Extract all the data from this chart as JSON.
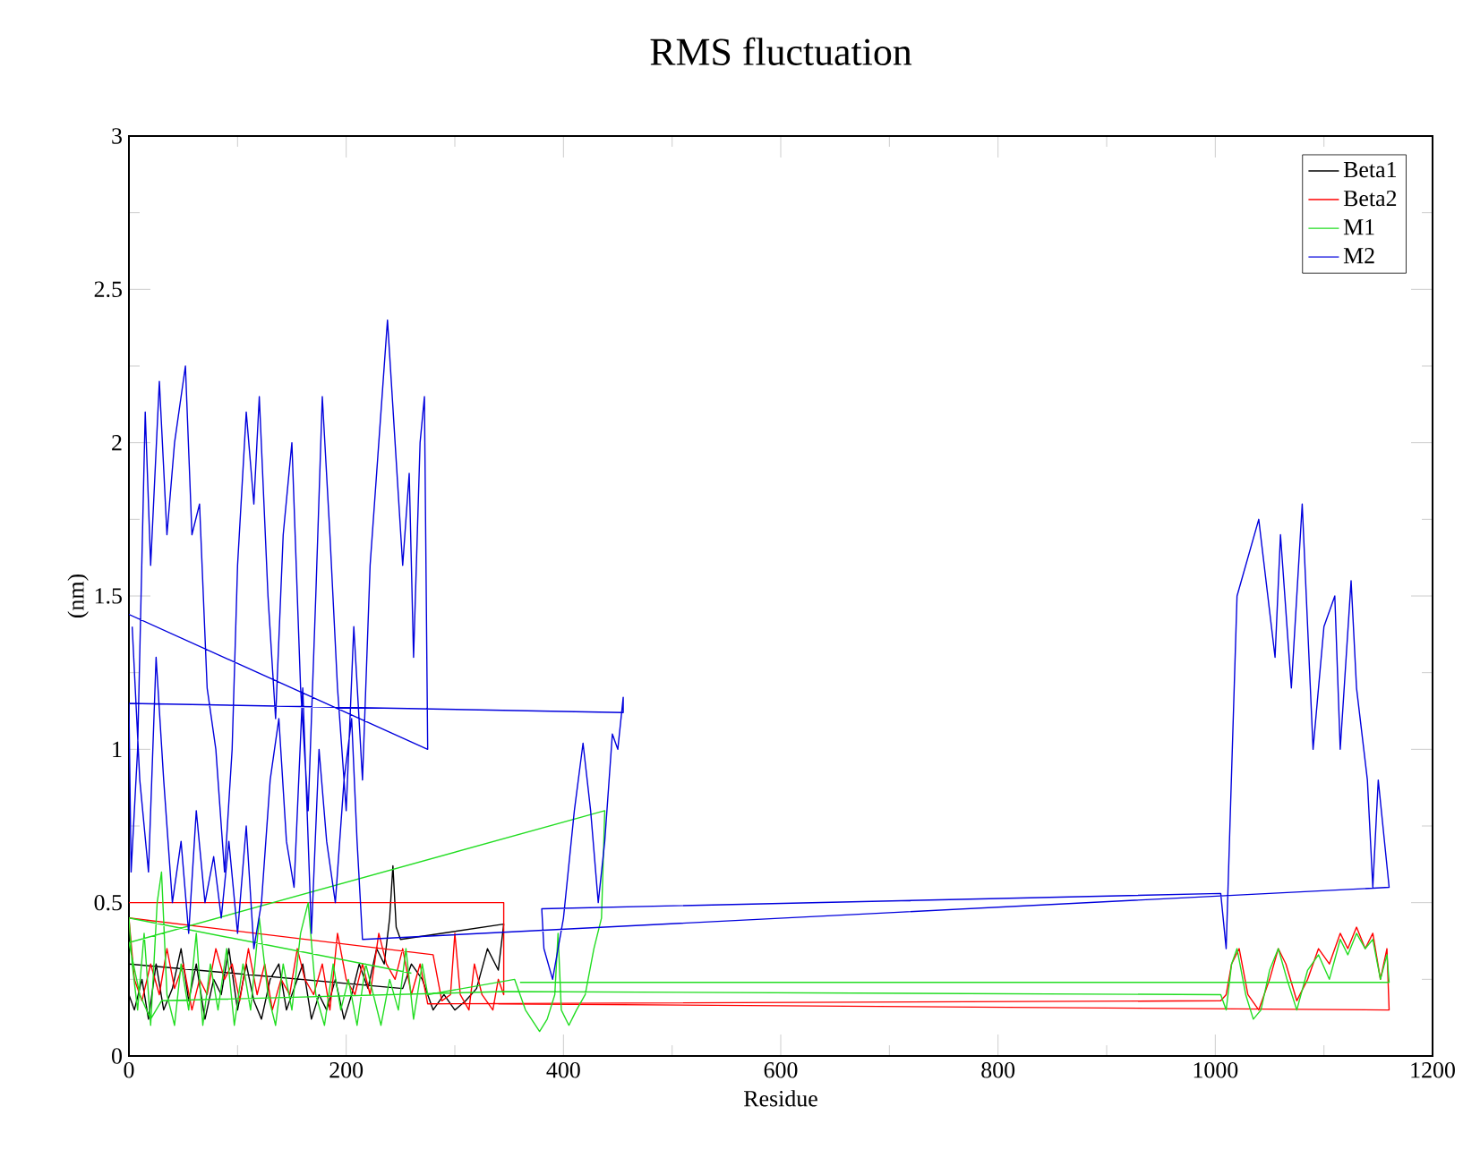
{
  "chart_data": {
    "type": "line",
    "title": "RMS fluctuation",
    "xlabel": "Residue",
    "ylabel": "(nm)",
    "xlim": [
      0,
      1200
    ],
    "ylim": [
      0,
      3
    ],
    "xticks": [
      0,
      200,
      400,
      600,
      800,
      1000,
      1200
    ],
    "yticks": [
      0,
      0.5,
      1,
      1.5,
      2,
      2.5,
      3
    ],
    "legend": "top right",
    "grid": false,
    "line_style": "solid",
    "series": [
      {
        "name": "Beta1",
        "color": "#000000",
        "x": [
          0,
          5,
          12,
          18,
          25,
          32,
          40,
          48,
          55,
          62,
          70,
          78,
          85,
          92,
          100,
          108,
          115,
          122,
          130,
          138,
          145,
          152,
          160,
          168,
          175,
          182,
          190,
          198,
          205,
          212,
          220,
          228,
          235,
          240,
          243,
          246,
          250,
          345,
          340,
          330,
          320,
          310,
          300,
          290,
          280,
          270,
          260,
          252,
          0
        ],
        "values": [
          0.2,
          0.15,
          0.25,
          0.12,
          0.3,
          0.15,
          0.22,
          0.35,
          0.18,
          0.3,
          0.12,
          0.25,
          0.2,
          0.35,
          0.15,
          0.3,
          0.18,
          0.12,
          0.25,
          0.3,
          0.15,
          0.22,
          0.3,
          0.12,
          0.2,
          0.15,
          0.25,
          0.12,
          0.2,
          0.3,
          0.22,
          0.35,
          0.3,
          0.45,
          0.62,
          0.42,
          0.38,
          0.43,
          0.28,
          0.35,
          0.22,
          0.18,
          0.15,
          0.2,
          0.15,
          0.25,
          0.3,
          0.22,
          0.3
        ]
      },
      {
        "name": "Beta2",
        "color": "#ff0000",
        "x": [
          0,
          345,
          345,
          340,
          335,
          325,
          318,
          313,
          305,
          300,
          296,
          288,
          280,
          0,
          5,
          12,
          20,
          28,
          35,
          42,
          50,
          58,
          65,
          72,
          80,
          88,
          95,
          102,
          110,
          118,
          125,
          132,
          140,
          148,
          155,
          162,
          170,
          178,
          185,
          192,
          200,
          208,
          215,
          222,
          230,
          237,
          245,
          252,
          260,
          268,
          275,
          1005,
          1010,
          1015,
          1022,
          1030,
          1040,
          1050,
          1058,
          1065,
          1075,
          1085,
          1095,
          1105,
          1115,
          1122,
          1130,
          1138,
          1145,
          1152,
          1158,
          1160,
          340
        ],
        "values": [
          0.5,
          0.5,
          0.2,
          0.25,
          0.15,
          0.2,
          0.3,
          0.15,
          0.2,
          0.4,
          0.2,
          0.18,
          0.33,
          0.45,
          0.25,
          0.18,
          0.3,
          0.2,
          0.35,
          0.22,
          0.3,
          0.15,
          0.25,
          0.2,
          0.35,
          0.25,
          0.3,
          0.18,
          0.35,
          0.2,
          0.3,
          0.15,
          0.25,
          0.2,
          0.35,
          0.25,
          0.2,
          0.3,
          0.15,
          0.4,
          0.25,
          0.2,
          0.3,
          0.2,
          0.4,
          0.3,
          0.25,
          0.35,
          0.2,
          0.3,
          0.17,
          0.18,
          0.2,
          0.3,
          0.35,
          0.2,
          0.15,
          0.25,
          0.35,
          0.3,
          0.18,
          0.25,
          0.35,
          0.3,
          0.4,
          0.35,
          0.42,
          0.35,
          0.4,
          0.25,
          0.35,
          0.15,
          0.17
        ]
      },
      {
        "name": "M1",
        "color": "#22dd22",
        "x": [
          260,
          0,
          3,
          8,
          14,
          20,
          26,
          30,
          35,
          42,
          48,
          55,
          62,
          68,
          75,
          82,
          90,
          97,
          105,
          112,
          120,
          128,
          135,
          142,
          150,
          158,
          165,
          172,
          180,
          188,
          195,
          202,
          210,
          218,
          225,
          232,
          240,
          248,
          255,
          262,
          270,
          275,
          355,
          365,
          378,
          385,
          392,
          395,
          398,
          405,
          412,
          420,
          428,
          435,
          438,
          0,
          10,
          20,
          30,
          345,
          1005,
          1010,
          1015,
          1020,
          1028,
          1035,
          1042,
          1050,
          1058,
          1066,
          1075,
          1085,
          1095,
          1105,
          1115,
          1122,
          1130,
          1138,
          1145,
          1152,
          1158,
          1160,
          360
        ],
        "values": [
          0.27,
          0.45,
          0.3,
          0.15,
          0.4,
          0.1,
          0.5,
          0.6,
          0.2,
          0.1,
          0.3,
          0.15,
          0.4,
          0.1,
          0.3,
          0.15,
          0.35,
          0.1,
          0.3,
          0.15,
          0.45,
          0.2,
          0.1,
          0.3,
          0.15,
          0.4,
          0.5,
          0.2,
          0.1,
          0.3,
          0.15,
          0.25,
          0.1,
          0.3,
          0.2,
          0.1,
          0.25,
          0.15,
          0.35,
          0.12,
          0.3,
          0.2,
          0.25,
          0.15,
          0.08,
          0.12,
          0.2,
          0.4,
          0.15,
          0.1,
          0.15,
          0.2,
          0.35,
          0.45,
          0.8,
          0.37,
          0.2,
          0.12,
          0.18,
          0.21,
          0.2,
          0.15,
          0.3,
          0.35,
          0.2,
          0.12,
          0.15,
          0.28,
          0.35,
          0.25,
          0.15,
          0.28,
          0.33,
          0.25,
          0.38,
          0.33,
          0.4,
          0.35,
          0.38,
          0.25,
          0.33,
          0.24,
          0.24
        ]
      },
      {
        "name": "M2",
        "color": "#0000dd",
        "x": [
          0,
          275,
          272,
          268,
          262,
          258,
          252,
          245,
          238,
          230,
          222,
          215,
          207,
          200,
          192,
          185,
          178,
          172,
          165,
          158,
          150,
          142,
          135,
          128,
          120,
          115,
          108,
          100,
          95,
          88,
          80,
          72,
          65,
          58,
          52,
          42,
          35,
          28,
          20,
          15,
          8,
          2,
          0,
          455,
          455,
          450,
          445,
          438,
          432,
          425,
          418,
          410,
          400,
          390,
          382,
          380,
          1005,
          1010,
          1020,
          1040,
          1055,
          1060,
          1070,
          1080,
          1090,
          1100,
          1110,
          1115,
          1125,
          1130,
          1140,
          1145,
          1150,
          1160,
          215,
          210,
          205,
          198,
          190,
          182,
          175,
          168,
          160,
          152,
          145,
          138,
          130,
          122,
          115,
          108,
          100,
          92,
          85,
          78,
          70,
          62,
          55,
          48,
          40,
          32,
          25,
          18,
          10,
          3
        ],
        "values": [
          1.44,
          1.0,
          2.15,
          2.0,
          1.3,
          1.9,
          1.6,
          2.0,
          2.4,
          2.0,
          1.6,
          0.9,
          1.4,
          0.8,
          1.2,
          1.7,
          2.15,
          1.5,
          0.8,
          1.2,
          2.0,
          1.7,
          1.1,
          1.5,
          2.15,
          1.8,
          2.1,
          1.6,
          1.0,
          0.6,
          1.0,
          1.2,
          1.8,
          1.7,
          2.25,
          2.0,
          1.7,
          2.2,
          1.6,
          2.1,
          1.0,
          0.6,
          1.15,
          1.12,
          1.17,
          1.0,
          1.05,
          0.7,
          0.5,
          0.8,
          1.02,
          0.8,
          0.45,
          0.25,
          0.35,
          0.48,
          0.53,
          0.35,
          1.5,
          1.75,
          1.3,
          1.7,
          1.2,
          1.8,
          1.0,
          1.4,
          1.5,
          1.0,
          1.55,
          1.2,
          0.9,
          0.55,
          0.9,
          0.55,
          0.38,
          0.7,
          1.1,
          0.9,
          0.5,
          0.7,
          1.0,
          0.4,
          1.2,
          0.55,
          0.7,
          1.1,
          0.9,
          0.5,
          0.35,
          0.75,
          0.4,
          0.7,
          0.45,
          0.65,
          0.5,
          0.8,
          0.4,
          0.7,
          0.5,
          0.9,
          1.3,
          0.6,
          0.9,
          1.4
        ]
      }
    ]
  }
}
